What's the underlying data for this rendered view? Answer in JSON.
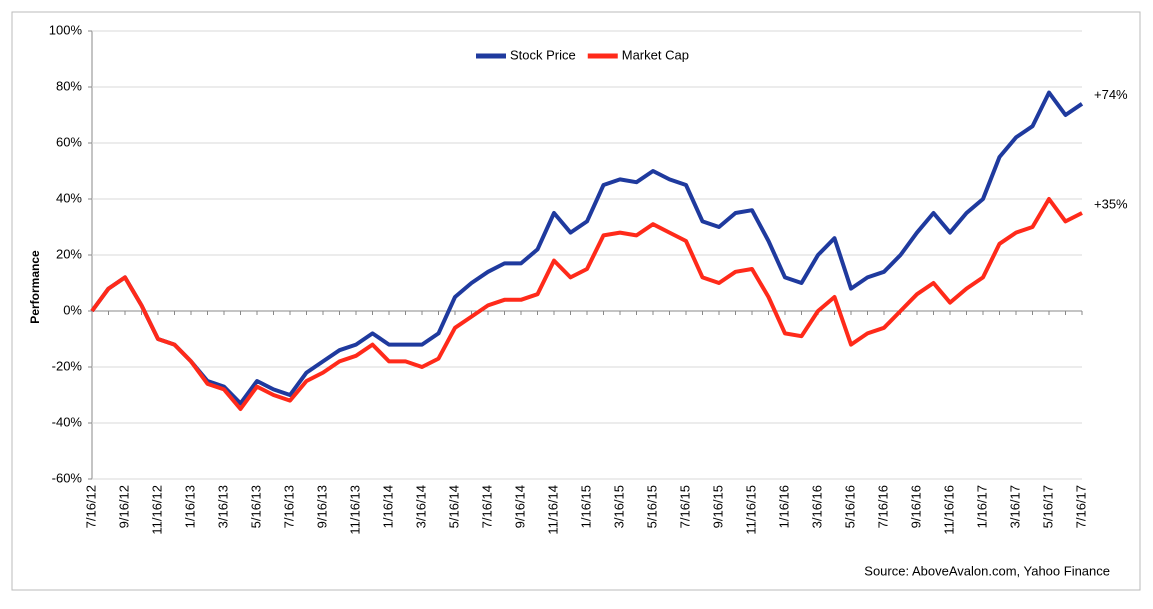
{
  "chart_data": {
    "type": "line",
    "y_label": "Performance",
    "source": "Source: AboveAvalon.com, Yahoo Finance",
    "annotations": [
      "+74%",
      "+35%"
    ],
    "legend": "top",
    "grid": true,
    "categories": [
      "7/16/12",
      null,
      "9/16/12",
      null,
      "11/16/12",
      null,
      "1/16/13",
      null,
      "3/16/13",
      null,
      "5/16/13",
      null,
      "7/16/13",
      null,
      "9/16/13",
      null,
      "11/16/13",
      null,
      "1/16/14",
      null,
      "3/16/14",
      null,
      "5/16/14",
      null,
      "7/16/14",
      null,
      "9/16/14",
      null,
      "11/16/14",
      null,
      "1/16/15",
      null,
      "3/16/15",
      null,
      "5/16/15",
      null,
      "7/16/15",
      null,
      "9/16/15",
      null,
      "11/16/15",
      null,
      "1/16/16",
      null,
      "3/16/16",
      null,
      "5/16/16",
      null,
      "7/16/16",
      null,
      "9/16/16",
      null,
      "11/16/16",
      null,
      "1/16/17",
      null,
      "3/16/17",
      null,
      "5/16/17",
      null,
      "7/16/17"
    ],
    "series": [
      {
        "name": "Stock Price",
        "color": "#1f3a9e",
        "values": [
          0,
          8,
          12,
          2,
          -10,
          -12,
          -18,
          -25,
          -27,
          -33,
          -25,
          -28,
          -30,
          -22,
          -18,
          -14,
          -12,
          -8,
          -12,
          -12,
          -12,
          -8,
          5,
          10,
          14,
          17,
          17,
          22,
          35,
          28,
          32,
          45,
          47,
          46,
          50,
          47,
          45,
          32,
          30,
          35,
          36,
          25,
          12,
          10,
          20,
          26,
          8,
          12,
          14,
          20,
          28,
          35,
          28,
          35,
          40,
          55,
          62,
          66,
          78,
          70,
          74
        ]
      },
      {
        "name": "Market Cap",
        "color": "#ff2a1a",
        "values": [
          0,
          8,
          12,
          2,
          -10,
          -12,
          -18,
          -26,
          -28,
          -35,
          -27,
          -30,
          -32,
          -25,
          -22,
          -18,
          -16,
          -12,
          -18,
          -18,
          -20,
          -17,
          -6,
          -2,
          2,
          4,
          4,
          6,
          18,
          12,
          15,
          27,
          28,
          27,
          31,
          28,
          25,
          12,
          10,
          14,
          15,
          5,
          -8,
          -9,
          0,
          5,
          -12,
          -8,
          -6,
          0,
          6,
          10,
          3,
          8,
          12,
          24,
          28,
          30,
          40,
          32,
          35
        ]
      }
    ],
    "ylim": [
      -60,
      100
    ],
    "yticks": [
      {
        "value": -60,
        "label": "-60%"
      },
      {
        "value": -40,
        "label": "-40%"
      },
      {
        "value": -20,
        "label": "-20%"
      },
      {
        "value": 0,
        "label": "0%"
      },
      {
        "value": 20,
        "label": "20%"
      },
      {
        "value": 40,
        "label": "40%"
      },
      {
        "value": 60,
        "label": "60%"
      },
      {
        "value": 80,
        "label": "80%"
      },
      {
        "value": 100,
        "label": "100%"
      }
    ]
  }
}
